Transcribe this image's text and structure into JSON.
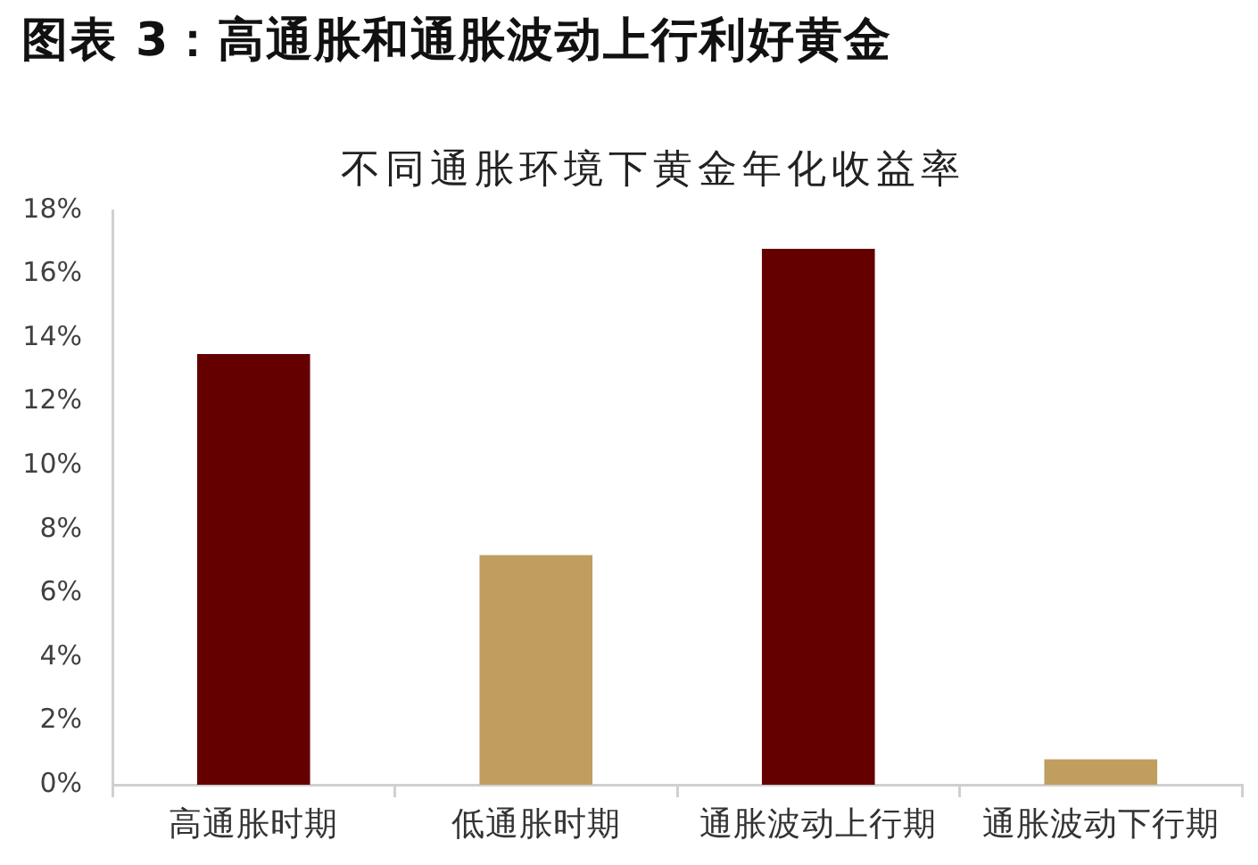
{
  "chart_data": {
    "type": "bar",
    "title": "图表 3：高通胀和通胀波动上行利好黄金",
    "subtitle": "不同通胀环境下黄金年化收益率",
    "categories": [
      "高通胀时期",
      "低通胀时期",
      "通胀波动上行期",
      "通胀波动下行期"
    ],
    "values": [
      13.5,
      7.2,
      16.8,
      0.8
    ],
    "colors": [
      "#640000",
      "#c09e60",
      "#640000",
      "#c09e60"
    ],
    "ylim": [
      0,
      18
    ],
    "yticks": [
      {
        "value": 0,
        "label": "0%"
      },
      {
        "value": 2,
        "label": "2%"
      },
      {
        "value": 4,
        "label": "4%"
      },
      {
        "value": 6,
        "label": "6%"
      },
      {
        "value": 8,
        "label": "8%"
      },
      {
        "value": 10,
        "label": "10%"
      },
      {
        "value": 12,
        "label": "12%"
      },
      {
        "value": 14,
        "label": "14%"
      },
      {
        "value": 16,
        "label": "16%"
      },
      {
        "value": 18,
        "label": "18%"
      }
    ]
  }
}
